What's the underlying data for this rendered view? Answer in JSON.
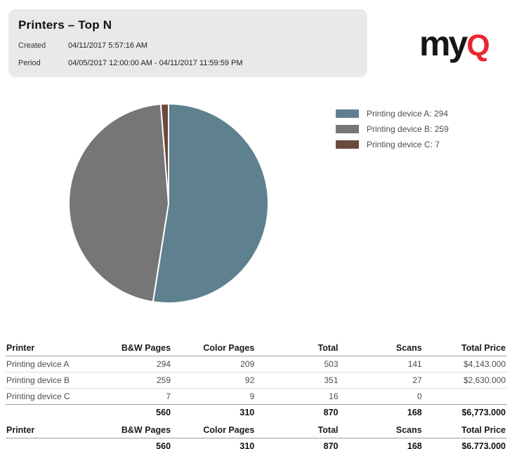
{
  "report": {
    "title": "Printers – Top N",
    "created_label": "Created",
    "created_value": "04/11/2017 5:57:16 AM",
    "period_label": "Period",
    "period_value": "04/05/2017 12:00:00 AM - 04/11/2017 11:59:59 PM"
  },
  "logo": {
    "text_black": "my",
    "text_red": "Q",
    "red_color": "#e8282d"
  },
  "chart_data": {
    "type": "pie",
    "labels": [
      "Printing device A",
      "Printing device B",
      "Printing device C"
    ],
    "values": [
      294,
      259,
      7
    ],
    "colors": [
      "#5f808f",
      "#767676",
      "#6b493d"
    ],
    "legend": [
      "Printing device A: 294",
      "Printing device B: 259",
      "Printing device C: 7"
    ],
    "legend_position": "right",
    "start_angle_deg": 0,
    "direction": "clockwise",
    "slice_border_color": "#ffffff"
  },
  "table": {
    "headers": [
      "Printer",
      "B&W Pages",
      "Color Pages",
      "Total",
      "Scans",
      "Total Price"
    ],
    "rows": [
      [
        "Printing device A",
        "294",
        "209",
        "503",
        "141",
        "$4,143.000"
      ],
      [
        "Printing device B",
        "259",
        "92",
        "351",
        "27",
        "$2,630.000"
      ],
      [
        "Printing device C",
        "7",
        "9",
        "16",
        "0",
        ""
      ]
    ],
    "totals": [
      "",
      "560",
      "310",
      "870",
      "168",
      "$6,773.000"
    ]
  },
  "summary_table": {
    "headers": [
      "Printer",
      "B&W Pages",
      "Color Pages",
      "Total",
      "Scans",
      "Total Price"
    ],
    "totals": [
      "",
      "560",
      "310",
      "870",
      "168",
      "$6,773.000"
    ]
  }
}
